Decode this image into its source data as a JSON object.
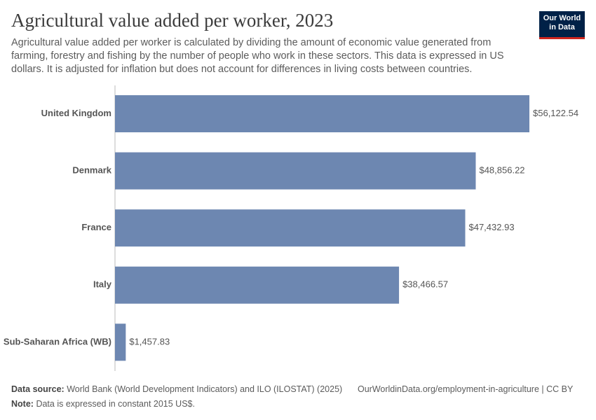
{
  "chart_data": {
    "type": "bar",
    "orientation": "horizontal",
    "title": "Agricultural value added per worker, 2023",
    "subtitle": "Agricultural value added per worker is calculated by dividing the amount of economic value generated from farming, forestry and fishing by the number of people who work in these sectors. This data is expressed in US dollars. It is adjusted for inflation but does not account for differences in living costs between countries.",
    "categories": [
      "United Kingdom",
      "Denmark",
      "France",
      "Italy",
      "Sub-Saharan Africa (WB)"
    ],
    "values": [
      56122.54,
      48856.22,
      47432.93,
      38466.57,
      1457.83
    ],
    "value_labels": [
      "$56,122.54",
      "$48,856.22",
      "$47,432.93",
      "$38,466.57",
      "$1,457.83"
    ],
    "color": "#6d87b1"
  },
  "logo": {
    "line1": "Our World",
    "line2": "in Data"
  },
  "footer": {
    "source_label": "Data source:",
    "source": "World Bank (World Development Indicators) and ILO (ILOSTAT) (2025)",
    "url": "OurWorldinData.org/employment-in-agriculture | CC BY",
    "note_label": "Note:",
    "note": "Data is expressed in constant 2015 US$."
  }
}
